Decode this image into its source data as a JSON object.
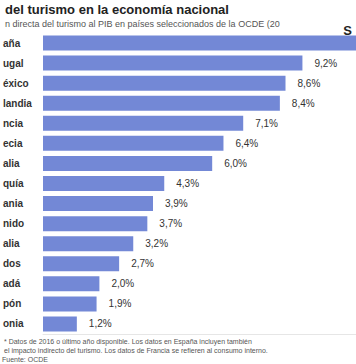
{
  "chart_data": {
    "type": "bar",
    "title": "del turismo en la economía nacional",
    "subtitle": "n directa del turismo al PIB en países seleccionados de la OCDE (20",
    "categories": [
      "aña",
      "ugal",
      "éxico",
      "landia",
      "ncia",
      "ecia",
      "alia",
      "quía",
      "ania",
      "nido",
      "alia",
      "dos",
      "adá",
      "pón",
      "onia"
    ],
    "values": [
      11.1,
      9.2,
      8.6,
      8.4,
      7.1,
      6.4,
      6.0,
      4.3,
      3.9,
      3.7,
      3.2,
      2.7,
      2.0,
      1.9,
      1.2
    ],
    "value_labels": [
      null,
      "9,2%",
      "8,6%",
      "8,4%",
      "7,1%",
      "6,4%",
      "6,0%",
      "4,3%",
      "3,9%",
      "3,7%",
      "3,2%",
      "2,7%",
      "2,0%",
      "1,9%",
      "1,2%"
    ],
    "color": "#7388d6",
    "orientation": "horizontal",
    "data_labels": true,
    "tick_labels": "y",
    "grid": false,
    "xlim": [
      0,
      11.1
    ],
    "annotations": [
      "* Datos de 2016 o último año disponible. Los datos en España incluyen también",
      "el impacto indirecto del turismo. Los datos de Francia se refieren al consumo interno.",
      "Fuente: OCDE",
      "S"
    ]
  }
}
